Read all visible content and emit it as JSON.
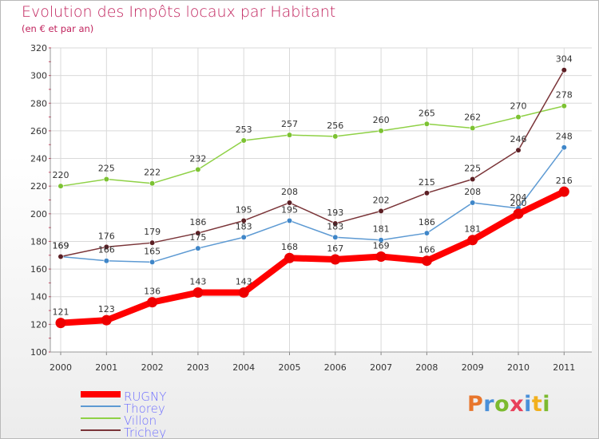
{
  "title": "Evolution des Impôts locaux par Habitant",
  "subtitle": "(en € et par an)",
  "logo": {
    "text": "Proxiti",
    "letters": [
      {
        "ch": "P",
        "color": "#e8762c"
      },
      {
        "ch": "r",
        "color": "#4a90d9"
      },
      {
        "ch": "o",
        "color": "#7cba2f"
      },
      {
        "ch": "x",
        "color": "#e8405a"
      },
      {
        "ch": "i",
        "color": "#4a90d9"
      },
      {
        "ch": "t",
        "color": "#f2b01e"
      },
      {
        "ch": "i",
        "color": "#7cba2f"
      }
    ]
  },
  "chart_data": {
    "type": "line",
    "title": "Evolution des Impôts locaux par Habitant",
    "subtitle": "(en € et par an)",
    "xlabel": "",
    "ylabel": "",
    "categories": [
      "2000",
      "2001",
      "2002",
      "2003",
      "2004",
      "2005",
      "2006",
      "2007",
      "2008",
      "2009",
      "2010",
      "2011"
    ],
    "ylim": [
      100,
      320
    ],
    "yticks": [
      "100",
      "120",
      "140",
      "160",
      "180",
      "200",
      "220",
      "240",
      "260",
      "280",
      "300",
      "320"
    ],
    "grid": true,
    "legend": "bottom-left",
    "series": [
      {
        "name": "Villon",
        "color": "#8fd146",
        "marker": "#7cc232",
        "values": [
          220,
          225,
          222,
          232,
          253,
          257,
          256,
          260,
          265,
          262,
          270,
          278
        ],
        "labels": [
          "220",
          "225",
          "222",
          "232",
          "253",
          "257",
          "256",
          "260",
          "265",
          "262",
          "270",
          "278"
        ]
      },
      {
        "name": "Thorey",
        "color": "#5d9ad3",
        "marker": "#3f86c8",
        "values": [
          169,
          166,
          165,
          175,
          183,
          195,
          183,
          181,
          186,
          208,
          204,
          248
        ],
        "labels": [
          "169",
          "166",
          "165",
          "175",
          "183",
          "195",
          "183",
          "181",
          "186",
          "208",
          "204",
          "248"
        ]
      },
      {
        "name": "Trichey",
        "color": "#7a3438",
        "marker": "#5c1f24",
        "values": [
          169,
          176,
          179,
          186,
          195,
          208,
          193,
          202,
          215,
          225,
          246,
          304
        ],
        "labels": [
          "169",
          "176",
          "179",
          "186",
          "195",
          "208",
          "193",
          "202",
          "215",
          "225",
          "246",
          "304"
        ]
      },
      {
        "name": "RUGNY",
        "color": "#ff0000",
        "marker": "#ee0000",
        "values": [
          121,
          123,
          136,
          143,
          143,
          168,
          167,
          169,
          166,
          181,
          200,
          216
        ],
        "labels": [
          "121",
          "123",
          "136",
          "143",
          "143",
          "168",
          "167",
          "169",
          "166",
          "181",
          "200",
          "216"
        ]
      }
    ],
    "legend_entries": [
      {
        "name": "RUGNY",
        "color": "#ff0000",
        "text_color": "#6d6dff"
      },
      {
        "name": "Thorey",
        "color": "#5d9ad3",
        "text_color": "#6d6dff"
      },
      {
        "name": "Villon",
        "color": "#8fd146",
        "text_color": "#6d6dff"
      },
      {
        "name": "Trichey",
        "color": "#7a3438",
        "text_color": "#6d6dff"
      }
    ]
  }
}
